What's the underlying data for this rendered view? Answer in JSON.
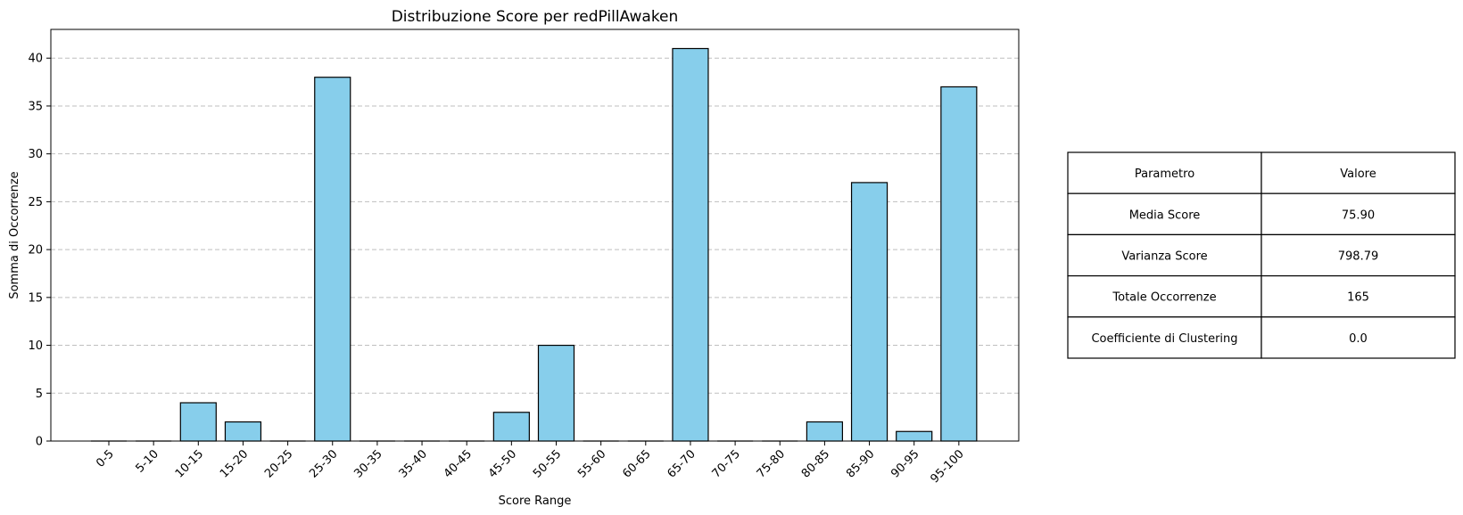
{
  "chart_data": {
    "type": "bar",
    "title": "Distribuzione Score per redPillAwaken",
    "xlabel": "Score Range",
    "ylabel": "Somma di Occorrenze",
    "categories": [
      "0-5",
      "5-10",
      "10-15",
      "15-20",
      "20-25",
      "25-30",
      "30-35",
      "35-40",
      "40-45",
      "45-50",
      "50-55",
      "55-60",
      "60-65",
      "65-70",
      "70-75",
      "75-80",
      "80-85",
      "85-90",
      "90-95",
      "95-100"
    ],
    "values": [
      0,
      0,
      4,
      2,
      0,
      38,
      0,
      0,
      0,
      3,
      10,
      0,
      0,
      41,
      0,
      0,
      2,
      27,
      1,
      37
    ],
    "ylim": [
      0,
      43
    ],
    "yticks": [
      0,
      5,
      10,
      15,
      20,
      25,
      30,
      35,
      40
    ],
    "grid": "y-dashed",
    "bar_color": "#87CEEB",
    "edge_color": "#000000"
  },
  "table": {
    "header": [
      "Parametro",
      "Valore"
    ],
    "rows": [
      [
        "Media Score",
        "75.90"
      ],
      [
        "Varianza Score",
        "798.79"
      ],
      [
        "Totale Occorrenze",
        "165"
      ],
      [
        "Coefficiente di Clustering",
        "0.0"
      ]
    ]
  }
}
